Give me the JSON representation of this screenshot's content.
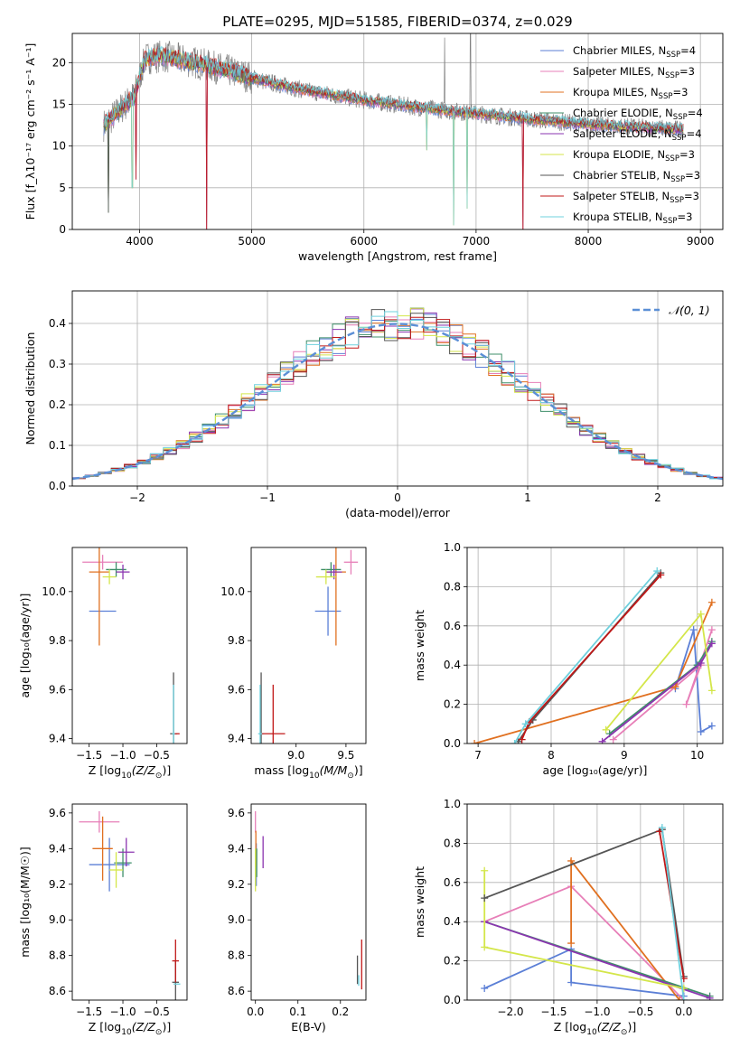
{
  "title": "PLATE=0295, MJD=51585, FIBERID=0374, z=0.029",
  "colors": {
    "Chabrier MILES": "#5b7fd6",
    "Salpeter MILES": "#e77fb8",
    "Kroupa MILES": "#e07020",
    "Chabrier ELODIE": "#3f8f6a",
    "Salpeter ELODIE": "#8b35b0",
    "Kroupa ELODIE": "#d4e64a",
    "Chabrier STELIB": "#555555",
    "Salpeter STELIB": "#c01818",
    "Kroupa STELIB": "#6fd0dd",
    "gauss": "#5b8fd6"
  },
  "chart_data": [
    {
      "id": "spectrum",
      "type": "line",
      "xlabel": "wavelength [Angstrom, rest frame]",
      "ylabel": "Flux [f_λ10⁻¹⁷ erg cm⁻² s⁻¹ A⁻¹]",
      "xlim": [
        3400,
        9200
      ],
      "ylim": [
        0,
        23.5
      ],
      "xticks": [
        4000,
        5000,
        6000,
        7000,
        8000,
        9000
      ],
      "yticks": [
        0,
        5,
        10,
        15,
        20
      ],
      "grid": true,
      "legend_position": "top-right",
      "legend": [
        {
          "base": "Chabrier MILES, N",
          "sub": "SSP",
          "tail": "=4"
        },
        {
          "base": "Salpeter MILES, N",
          "sub": "SSP",
          "tail": "=3"
        },
        {
          "base": "Kroupa MILES, N",
          "sub": "SSP",
          "tail": "=3"
        },
        {
          "base": "Chabrier ELODIE, N",
          "sub": "SSP",
          "tail": "=4"
        },
        {
          "base": "Salpeter ELODIE, N",
          "sub": "SSP",
          "tail": "=4"
        },
        {
          "base": "Kroupa ELODIE, N",
          "sub": "SSP",
          "tail": "=3"
        },
        {
          "base": "Chabrier STELIB, N",
          "sub": "SSP",
          "tail": "=3"
        },
        {
          "base": "Salpeter STELIB, N",
          "sub": "SSP",
          "tail": "=3"
        },
        {
          "base": "Kroupa STELIB, N",
          "sub": "SSP",
          "tail": "=3"
        }
      ],
      "continuum": [
        [
          3680,
          12.5
        ],
        [
          3800,
          14.0
        ],
        [
          3950,
          16.0
        ],
        [
          4050,
          20.5
        ],
        [
          4200,
          20.8
        ],
        [
          4500,
          20.0
        ],
        [
          4800,
          19.0
        ],
        [
          5100,
          17.8
        ],
        [
          5500,
          16.6
        ],
        [
          6000,
          15.5
        ],
        [
          6500,
          14.6
        ],
        [
          7000,
          13.9
        ],
        [
          7500,
          13.2
        ],
        [
          8000,
          12.6
        ],
        [
          8500,
          12.2
        ],
        [
          8850,
          12.0
        ]
      ],
      "dips": [
        {
          "x": 3935,
          "y": 5.0
        },
        {
          "x": 3970,
          "y": 6.0
        },
        {
          "x": 4600,
          "y": 0.0
        },
        {
          "x": 6560,
          "y": 9.5
        },
        {
          "x": 6800,
          "y": 0.5
        },
        {
          "x": 6920,
          "y": 2.5
        },
        {
          "x": 7420,
          "y": 0.0
        },
        {
          "x": 3720,
          "y": 2.0
        }
      ],
      "spikes": [
        {
          "x": 6950,
          "y": 23.5
        },
        {
          "x": 6720,
          "y": 23.0
        },
        {
          "x": 5030,
          "y": 18.8
        }
      ]
    },
    {
      "id": "residuals",
      "type": "bar",
      "xlabel": "(data-model)/error",
      "ylabel": "Normed distribution",
      "xlim": [
        -2.5,
        2.5
      ],
      "ylim": [
        0,
        0.48
      ],
      "xticks": [
        -2,
        -1,
        0,
        1,
        2
      ],
      "yticks": [
        0.0,
        0.1,
        0.2,
        0.3,
        0.4
      ],
      "bin_width": 0.1,
      "grid": true,
      "legend_position": "top-right",
      "gauss_label": "𝒩(0, 1)"
    },
    {
      "id": "age-vs-Z",
      "type": "scatter",
      "xlabel_base": "Z [log",
      "xlabel_sub": "10",
      "xlabel_tail": "(Z/Z",
      "ylabel": "age  [log₁₀(age/yr)]",
      "xlim": [
        -1.75,
        -0.05
      ],
      "ylim": [
        9.38,
        10.18
      ],
      "xticks": [
        -1.5,
        -1.0,
        -0.5
      ],
      "yticks": [
        9.4,
        9.6,
        9.8,
        10.0
      ],
      "points": [
        {
          "model": "Chabrier MILES",
          "x": -1.3,
          "y": 9.92,
          "xe": 0.2,
          "ye": 0.0
        },
        {
          "model": "Salpeter MILES",
          "x": -1.3,
          "y": 10.12,
          "xe": 0.3,
          "ye": 0.03
        },
        {
          "model": "Kroupa MILES",
          "x": -1.35,
          "y": 10.08,
          "xe": 0.15,
          "ye": 0.3
        },
        {
          "model": "Chabrier ELODIE",
          "x": -1.1,
          "y": 10.09,
          "xe": 0.15,
          "ye": 0.03
        },
        {
          "model": "Salpeter ELODIE",
          "x": -1.0,
          "y": 10.08,
          "xe": 0.1,
          "ye": 0.03
        },
        {
          "model": "Kroupa ELODIE",
          "x": -1.2,
          "y": 10.06,
          "xe": 0.1,
          "ye": 0.03
        },
        {
          "model": "Chabrier STELIB",
          "x": -0.25,
          "y": 9.42,
          "xe": 0.05,
          "ye": 0.25
        },
        {
          "model": "Salpeter STELIB",
          "x": -0.2,
          "y": 9.42,
          "xe": 0.04,
          "ye": 0.0
        },
        {
          "model": "Kroupa STELIB",
          "x": -0.25,
          "y": 9.42,
          "xe": 0.02,
          "ye": 0.2
        }
      ]
    },
    {
      "id": "age-vs-mass",
      "type": "scatter",
      "xlabel_base": "mass [log",
      "xlabel_sub": "10",
      "xlabel_tail": "(M/M",
      "ylabel": "",
      "xlim": [
        8.55,
        9.7
      ],
      "ylim": [
        9.38,
        10.18
      ],
      "xticks": [
        9.0,
        9.5
      ],
      "yticks": [
        9.4,
        9.6,
        9.8,
        10.0
      ],
      "points": [
        {
          "model": "Chabrier MILES",
          "x": 9.32,
          "y": 9.92,
          "xe": 0.13,
          "ye": 0.1
        },
        {
          "model": "Salpeter MILES",
          "x": 9.55,
          "y": 10.12,
          "xe": 0.07,
          "ye": 0.05
        },
        {
          "model": "Kroupa MILES",
          "x": 9.4,
          "y": 10.08,
          "xe": 0.1,
          "ye": 0.3
        },
        {
          "model": "Chabrier ELODIE",
          "x": 9.35,
          "y": 10.09,
          "xe": 0.1,
          "ye": 0.03
        },
        {
          "model": "Salpeter ELODIE",
          "x": 9.38,
          "y": 10.08,
          "xe": 0.08,
          "ye": 0.03
        },
        {
          "model": "Kroupa ELODIE",
          "x": 9.3,
          "y": 10.06,
          "xe": 0.1,
          "ye": 0.03
        },
        {
          "model": "Chabrier STELIB",
          "x": 8.65,
          "y": 9.42,
          "xe": 0.02,
          "ye": 0.25
        },
        {
          "model": "Salpeter STELIB",
          "x": 8.77,
          "y": 9.42,
          "xe": 0.12,
          "ye": 0.2
        },
        {
          "model": "Kroupa STELIB",
          "x": 8.64,
          "y": 9.42,
          "xe": 0.02,
          "ye": 0.2
        }
      ]
    },
    {
      "id": "weight-vs-age",
      "type": "line",
      "xlabel": "age  [log₁₀(age/yr)]",
      "ylabel": "mass weight",
      "xlim": [
        6.85,
        10.35
      ],
      "ylim": [
        0,
        1.0
      ],
      "xticks": [
        7,
        8,
        9,
        10
      ],
      "yticks": [
        0.0,
        0.2,
        0.4,
        0.6,
        0.8,
        1.0
      ],
      "grid": true,
      "series": [
        {
          "model": "Chabrier MILES",
          "points": [
            [
              10.2,
              0.09
            ],
            [
              10.05,
              0.06
            ],
            [
              9.95,
              0.58
            ],
            [
              9.7,
              0.28
            ]
          ]
        },
        {
          "model": "Salpeter MILES",
          "points": [
            [
              10.2,
              0.58
            ],
            [
              9.85,
              0.2
            ],
            [
              10.05,
              0.4
            ],
            [
              8.85,
              0.02
            ]
          ]
        },
        {
          "model": "Kroupa MILES",
          "points": [
            [
              6.95,
              0.0
            ],
            [
              9.7,
              0.29
            ],
            [
              10.2,
              0.72
            ]
          ]
        },
        {
          "model": "Chabrier ELODIE",
          "points": [
            [
              8.8,
              0.05
            ],
            [
              10.0,
              0.4
            ],
            [
              10.2,
              0.52
            ]
          ]
        },
        {
          "model": "Salpeter ELODIE",
          "points": [
            [
              8.7,
              0.01
            ],
            [
              10.05,
              0.41
            ],
            [
              10.2,
              0.51
            ]
          ]
        },
        {
          "model": "Kroupa ELODIE",
          "points": [
            [
              8.75,
              0.07
            ],
            [
              10.05,
              0.66
            ],
            [
              10.2,
              0.27
            ]
          ]
        },
        {
          "model": "Chabrier STELIB",
          "points": [
            [
              7.55,
              0.01
            ],
            [
              7.75,
              0.12
            ],
            [
              9.5,
              0.87
            ]
          ]
        },
        {
          "model": "Salpeter STELIB",
          "points": [
            [
              7.6,
              0.02
            ],
            [
              7.7,
              0.11
            ],
            [
              9.5,
              0.86
            ]
          ]
        },
        {
          "model": "Kroupa STELIB",
          "points": [
            [
              7.5,
              0.0
            ],
            [
              7.65,
              0.1
            ],
            [
              9.45,
              0.88
            ]
          ]
        }
      ]
    },
    {
      "id": "mass-vs-Z",
      "type": "scatter",
      "xlabel_base": "Z [log",
      "xlabel_sub": "10",
      "xlabel_tail": "(Z/Z",
      "ylabel": "mass [log₁₀(M/M☉)]",
      "xlim": [
        -1.75,
        -0.05
      ],
      "ylim": [
        8.55,
        9.65
      ],
      "xticks": [
        -1.5,
        -1.0,
        -0.5
      ],
      "yticks": [
        8.6,
        8.8,
        9.0,
        9.2,
        9.4,
        9.6
      ],
      "points": [
        {
          "model": "Chabrier MILES",
          "x": -1.2,
          "y": 9.31,
          "xe": 0.3,
          "ye": 0.15
        },
        {
          "model": "Salpeter MILES",
          "x": -1.35,
          "y": 9.55,
          "xe": 0.3,
          "ye": 0.06
        },
        {
          "model": "Kroupa MILES",
          "x": -1.3,
          "y": 9.4,
          "xe": 0.15,
          "ye": 0.18
        },
        {
          "model": "Chabrier ELODIE",
          "x": -1.0,
          "y": 9.32,
          "xe": 0.13,
          "ye": 0.08
        },
        {
          "model": "Salpeter ELODIE",
          "x": -0.95,
          "y": 9.38,
          "xe": 0.12,
          "ye": 0.08
        },
        {
          "model": "Kroupa ELODIE",
          "x": -1.1,
          "y": 9.28,
          "xe": 0.1,
          "ye": 0.1
        },
        {
          "model": "Chabrier STELIB",
          "x": -0.22,
          "y": 8.65,
          "xe": 0.05,
          "ye": 0.12
        },
        {
          "model": "Salpeter STELIB",
          "x": -0.22,
          "y": 8.77,
          "xe": 0.05,
          "ye": 0.12
        },
        {
          "model": "Kroupa STELIB",
          "x": -0.2,
          "y": 8.64,
          "xe": 0.05,
          "ye": 0.0
        }
      ]
    },
    {
      "id": "mass-vs-EBV",
      "type": "scatter",
      "xlabel": "E(B-V)",
      "ylabel": "",
      "xlim": [
        -0.01,
        0.26
      ],
      "ylim": [
        8.55,
        9.65
      ],
      "xticks": [
        0.0,
        0.1,
        0.2
      ],
      "yticks": [
        8.6,
        8.8,
        9.0,
        9.2,
        9.4,
        9.6
      ],
      "points": [
        {
          "model": "Chabrier MILES",
          "x": 0.002,
          "y": 9.31,
          "xe": 0,
          "ye": 0.12
        },
        {
          "model": "Salpeter MILES",
          "x": 0.0,
          "y": 9.55,
          "xe": 0,
          "ye": 0.06
        },
        {
          "model": "Kroupa MILES",
          "x": 0.001,
          "y": 9.4,
          "xe": 0,
          "ye": 0.1
        },
        {
          "model": "Chabrier ELODIE",
          "x": 0.003,
          "y": 9.32,
          "xe": 0,
          "ye": 0.08
        },
        {
          "model": "Salpeter ELODIE",
          "x": 0.018,
          "y": 9.38,
          "xe": 0,
          "ye": 0.09
        },
        {
          "model": "Kroupa ELODIE",
          "x": 0.0,
          "y": 9.28,
          "xe": 0,
          "ye": 0.12
        },
        {
          "model": "Chabrier STELIB",
          "x": 0.24,
          "y": 8.72,
          "xe": 0,
          "ye": 0.08
        },
        {
          "model": "Salpeter STELIB",
          "x": 0.25,
          "y": 8.75,
          "xe": 0,
          "ye": 0.14
        },
        {
          "model": "Kroupa STELIB",
          "x": 0.243,
          "y": 8.66,
          "xe": 0,
          "ye": 0.03
        }
      ]
    },
    {
      "id": "weight-vs-Z",
      "type": "line",
      "xlabel_base": "Z [log",
      "xlabel_sub": "10",
      "xlabel_tail": "(Z/Z",
      "ylabel": "mass weight",
      "xlim": [
        -2.5,
        0.45
      ],
      "ylim": [
        0,
        1.0
      ],
      "xticks": [
        -2.0,
        -1.5,
        -1.0,
        -0.5,
        0.0
      ],
      "yticks": [
        0.0,
        0.2,
        0.4,
        0.6,
        0.8,
        1.0
      ],
      "grid": true,
      "series": [
        {
          "model": "Chabrier MILES",
          "points": [
            [
              -2.3,
              0.06
            ],
            [
              -1.3,
              0.26
            ],
            [
              -1.3,
              0.09
            ],
            [
              0.0,
              0.02
            ]
          ]
        },
        {
          "model": "Salpeter MILES",
          "points": [
            [
              -2.3,
              0.4
            ],
            [
              -1.3,
              0.58
            ],
            [
              0.0,
              0.0
            ]
          ]
        },
        {
          "model": "Kroupa MILES",
          "points": [
            [
              -1.3,
              0.29
            ],
            [
              -1.3,
              0.71
            ],
            [
              -0.05,
              0.0
            ]
          ]
        },
        {
          "model": "Chabrier ELODIE",
          "points": [
            [
              -2.3,
              0.4
            ],
            [
              0.3,
              0.02
            ]
          ]
        },
        {
          "model": "Salpeter ELODIE",
          "points": [
            [
              -2.3,
              0.4
            ],
            [
              0.3,
              0.01
            ]
          ]
        },
        {
          "model": "Kroupa ELODIE",
          "points": [
            [
              -2.3,
              0.66
            ],
            [
              -2.3,
              0.27
            ],
            [
              0.0,
              0.06
            ]
          ]
        },
        {
          "model": "Chabrier STELIB",
          "points": [
            [
              -2.3,
              0.52
            ],
            [
              -0.25,
              0.87
            ],
            [
              0.0,
              0.12
            ]
          ]
        },
        {
          "model": "Salpeter STELIB",
          "points": [
            [
              -0.28,
              0.86
            ],
            [
              0.0,
              0.11
            ]
          ]
        },
        {
          "model": "Kroupa STELIB",
          "points": [
            [
              -0.25,
              0.88
            ],
            [
              0.0,
              0.0
            ]
          ]
        }
      ]
    }
  ]
}
